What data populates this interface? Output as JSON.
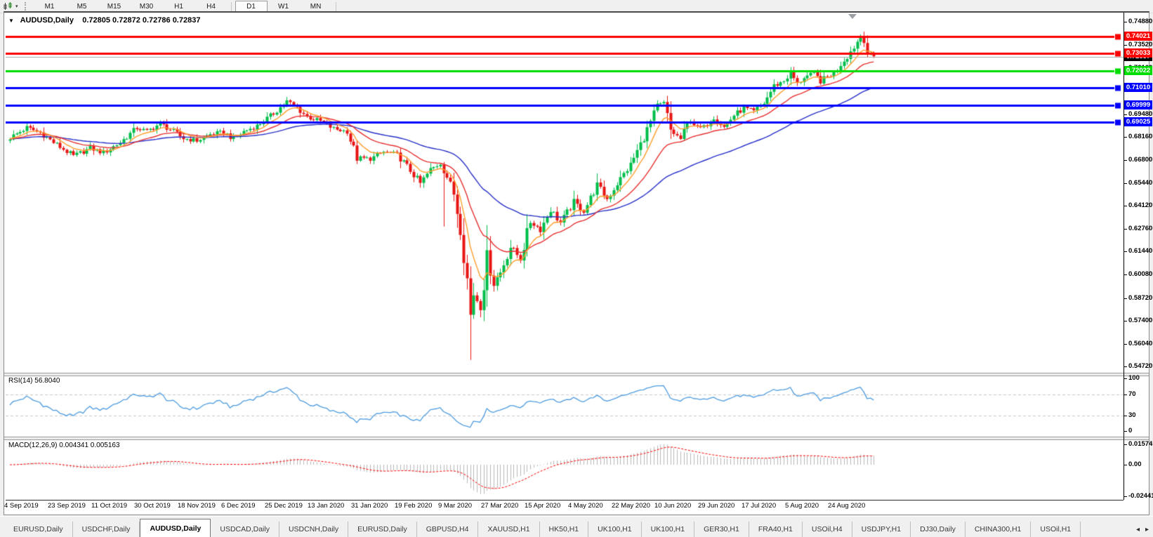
{
  "toolbar": {
    "timeframe_groups": [
      [
        "M1",
        "M5",
        "M15",
        "M30",
        "H1",
        "H4"
      ],
      [
        "D1",
        "W1",
        "MN"
      ]
    ],
    "active_timeframe": "D1"
  },
  "icons": {
    "title_caret": "▼",
    "toolbar_caret": "▾",
    "tab_scroll_left": "◂",
    "tab_scroll_right": "▸"
  },
  "chart": {
    "symbol_title": "AUDUSD,Daily",
    "ohlc_text": "0.72805 0.72872 0.72786 0.72837"
  },
  "chart_data": {
    "type": "candlestick",
    "symbol": "AUDUSD",
    "timeframe": "Daily",
    "open": "0.72805",
    "high": "0.72872",
    "low": "0.72786",
    "close": "0.72837",
    "grid": "off",
    "candle_count": 260,
    "candle_colors": {
      "bull": "#00BE4A",
      "bear": "#E81414"
    },
    "y_axis_ticks": [
      "0.74880",
      "0.73520",
      "0.72160",
      "0.70840",
      "0.69480",
      "0.68160",
      "0.66800",
      "0.65440",
      "0.64120",
      "0.62760",
      "0.61440",
      "0.60080",
      "0.58720",
      "0.57400",
      "0.56040",
      "0.54720"
    ],
    "x_axis_labels": [
      "4 Sep 2019",
      "23 Sep 2019",
      "11 Oct 2019",
      "30 Oct 2019",
      "18 Nov 2019",
      "6 Dec 2019",
      "25 Dec 2019",
      "13 Jan 2020",
      "31 Jan 2020",
      "19 Feb 2020",
      "9 Mar 2020",
      "27 Mar 2020",
      "15 Apr 2020",
      "4 May 2020",
      "22 May 2020",
      "10 Jun 2020",
      "29 Jun 2020",
      "17 Jul 2020",
      "5 Aug 2020",
      "24 Aug 2020"
    ],
    "horizontal_lines": [
      {
        "price": 0.74021,
        "label": "0.74021",
        "color": "#FF0000"
      },
      {
        "price": 0.73033,
        "label": "0.73033",
        "color": "#FF0000"
      },
      {
        "price": 0.72022,
        "label": "0.72022",
        "color": "#00DD00"
      },
      {
        "price": 0.7101,
        "label": "0.71010",
        "color": "#0000FF"
      },
      {
        "price": 0.69999,
        "label": "0.69999",
        "color": "#0000FF"
      },
      {
        "price": 0.69025,
        "label": "0.69025",
        "color": "#0000FF"
      }
    ],
    "current_price": {
      "value": 0.72837,
      "label": "0.72837",
      "line_color": "#A8A8A8",
      "badge_color": "#000000"
    },
    "moving_averages": [
      {
        "type": "ema",
        "period": 8,
        "color": "#FF9E2C"
      },
      {
        "type": "ema",
        "period": 21,
        "color": "#E83030"
      },
      {
        "type": "ema",
        "period": 55,
        "color": "#2830C8"
      }
    ],
    "price_anchors": [
      [
        0,
        0.681
      ],
      [
        5,
        0.6868
      ],
      [
        9,
        0.684
      ],
      [
        13,
        0.6782
      ],
      [
        19,
        0.6702
      ],
      [
        24,
        0.6748
      ],
      [
        28,
        0.6722
      ],
      [
        33,
        0.6782
      ],
      [
        38,
        0.6868
      ],
      [
        41,
        0.6846
      ],
      [
        45,
        0.6892
      ],
      [
        48,
        0.6858
      ],
      [
        52,
        0.6806
      ],
      [
        56,
        0.6792
      ],
      [
        60,
        0.683
      ],
      [
        64,
        0.6842
      ],
      [
        67,
        0.6802
      ],
      [
        70,
        0.6846
      ],
      [
        74,
        0.688
      ],
      [
        78,
        0.6936
      ],
      [
        83,
        0.7022
      ],
      [
        86,
        0.6986
      ],
      [
        89,
        0.6932
      ],
      [
        93,
        0.6906
      ],
      [
        97,
        0.6862
      ],
      [
        101,
        0.6846
      ],
      [
        104,
        0.6692
      ],
      [
        108,
        0.6686
      ],
      [
        112,
        0.6726
      ],
      [
        116,
        0.6712
      ],
      [
        119,
        0.6642
      ],
      [
        123,
        0.6542
      ],
      [
        126,
        0.6622
      ],
      [
        129,
        0.6662
      ],
      [
        131,
        0.6582
      ],
      [
        133,
        0.6482
      ],
      [
        135,
        0.6282
      ],
      [
        137,
        0.5982
      ],
      [
        138,
        0.5772
      ],
      [
        139,
        0.5902
      ],
      [
        141,
        0.5822
      ],
      [
        143,
        0.6102
      ],
      [
        145,
        0.5962
      ],
      [
        147,
        0.6022
      ],
      [
        150,
        0.6172
      ],
      [
        153,
        0.6102
      ],
      [
        156,
        0.6322
      ],
      [
        159,
        0.6272
      ],
      [
        162,
        0.6392
      ],
      [
        165,
        0.6312
      ],
      [
        169,
        0.6432
      ],
      [
        172,
        0.6382
      ],
      [
        176,
        0.6532
      ],
      [
        179,
        0.6452
      ],
      [
        182,
        0.6542
      ],
      [
        186,
        0.6652
      ],
      [
        190,
        0.6812
      ],
      [
        194,
        0.6992
      ],
      [
        196,
        0.7012
      ],
      [
        198,
        0.6852
      ],
      [
        201,
        0.6802
      ],
      [
        204,
        0.6922
      ],
      [
        206,
        0.6862
      ],
      [
        208,
        0.6872
      ],
      [
        211,
        0.6932
      ],
      [
        214,
        0.6872
      ],
      [
        217,
        0.6942
      ],
      [
        220,
        0.6982
      ],
      [
        223,
        0.6962
      ],
      [
        226,
        0.7012
      ],
      [
        229,
        0.7112
      ],
      [
        232,
        0.7142
      ],
      [
        234,
        0.7192
      ],
      [
        236,
        0.7122
      ],
      [
        238,
        0.7166
      ],
      [
        241,
        0.7182
      ],
      [
        243,
        0.7142
      ],
      [
        245,
        0.7166
      ],
      [
        247,
        0.7186
      ],
      [
        249,
        0.7242
      ],
      [
        251,
        0.7286
      ],
      [
        253,
        0.7342
      ],
      [
        255,
        0.7403
      ],
      [
        256,
        0.7382
      ],
      [
        257,
        0.7306
      ],
      [
        258,
        0.7292
      ],
      [
        259,
        0.7284
      ]
    ],
    "wick_overrides": [
      {
        "i": 130,
        "low": 0.629
      },
      {
        "i": 138,
        "low": 0.551
      },
      {
        "i": 255,
        "high": 0.7414
      }
    ],
    "rsi": {
      "name": "RSI",
      "params": "14",
      "value": "56.8040",
      "color": "#4C9BE0",
      "level_color": "#C8C8C8",
      "levels": [
        70,
        30
      ],
      "axis_labels": [
        {
          "v": 100,
          "t": "100"
        },
        {
          "v": 70,
          "t": "70"
        },
        {
          "v": 30,
          "t": "30"
        },
        {
          "v": 0,
          "t": "0"
        }
      ]
    },
    "macd": {
      "name": "MACD",
      "params": "12,26,9",
      "value": "0.004341",
      "signal_value": "0.005163",
      "hist_color": "#B8B8B8",
      "signal_color": "#FF0000",
      "axis_labels": [
        {
          "v": 0.015741,
          "t": "0.015741"
        },
        {
          "v": 0,
          "t": "0.00"
        },
        {
          "v": -0.024412,
          "t": "-0.024412"
        }
      ]
    }
  },
  "tabs": {
    "items": [
      {
        "label": "EURUSD,Daily"
      },
      {
        "label": "USDCHF,Daily"
      },
      {
        "label": "AUDUSD,Daily",
        "active": true
      },
      {
        "label": "USDCAD,Daily"
      },
      {
        "label": "USDCNH,Daily"
      },
      {
        "label": "EURUSD,Daily"
      },
      {
        "label": "GBPUSD,H4"
      },
      {
        "label": "XAUUSD,H1"
      },
      {
        "label": "HK50,H1"
      },
      {
        "label": "UK100,H1"
      },
      {
        "label": "UK100,H1"
      },
      {
        "label": "GER30,H1"
      },
      {
        "label": "FRA40,H1"
      },
      {
        "label": "USOil,H4"
      },
      {
        "label": "USDJPY,H1"
      },
      {
        "label": "DJ30,Daily"
      },
      {
        "label": "CHINA300,H1"
      },
      {
        "label": "USOil,H1"
      }
    ]
  }
}
